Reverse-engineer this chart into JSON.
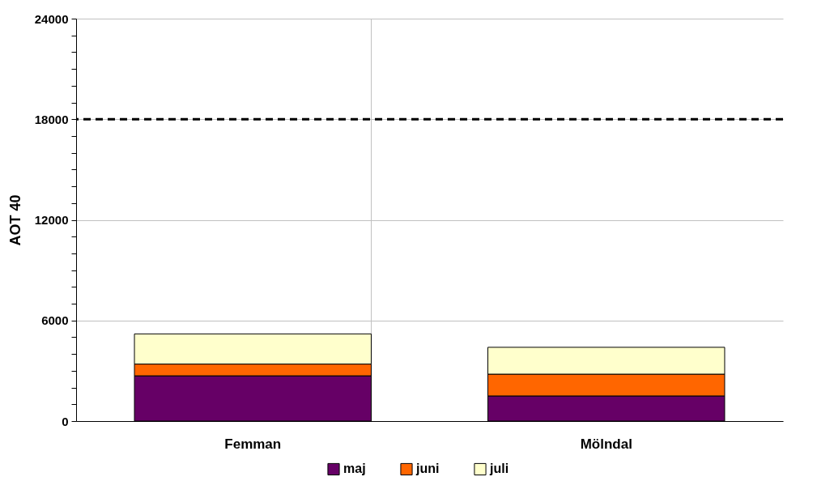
{
  "chart_data": {
    "type": "bar",
    "stacked": true,
    "ylabel": "AOT 40",
    "categories": [
      "Femman",
      "Mölndal"
    ],
    "series": [
      {
        "name": "maj",
        "color": "#660066",
        "values": [
          2700,
          1500
        ]
      },
      {
        "name": "juni",
        "color": "#ff6600",
        "values": [
          700,
          1300
        ]
      },
      {
        "name": "juli",
        "color": "#ffffcc",
        "values": [
          1800,
          1600
        ]
      }
    ],
    "ylim": [
      0,
      24000
    ],
    "yticks": [
      0,
      {
        "value": 1000,
        "label": null
      },
      {
        "value": 2000,
        "label": null
      },
      {
        "value": 3000,
        "label": null
      },
      {
        "value": 4000,
        "label": null
      },
      {
        "value": 5000,
        "label": null
      },
      6000,
      {
        "value": 7000,
        "label": null
      },
      {
        "value": 8000,
        "label": null
      },
      {
        "value": 9000,
        "label": null
      },
      {
        "value": 10000,
        "label": null
      },
      {
        "value": 11000,
        "label": null
      },
      12000,
      {
        "value": 13000,
        "label": null
      },
      {
        "value": 14000,
        "label": null
      },
      {
        "value": 15000,
        "label": null
      },
      {
        "value": 16000,
        "label": null
      },
      {
        "value": 17000,
        "label": null
      },
      18000,
      {
        "value": 19000,
        "label": null
      },
      {
        "value": 20000,
        "label": null
      },
      {
        "value": 21000,
        "label": null
      },
      {
        "value": 22000,
        "label": null
      },
      {
        "value": 23000,
        "label": null
      },
      24000
    ],
    "ref_lines": [
      {
        "axis": "y",
        "value": 18000,
        "color": "#000000",
        "line_style": "dashed"
      }
    ],
    "grid": true,
    "legend": "bottom"
  }
}
